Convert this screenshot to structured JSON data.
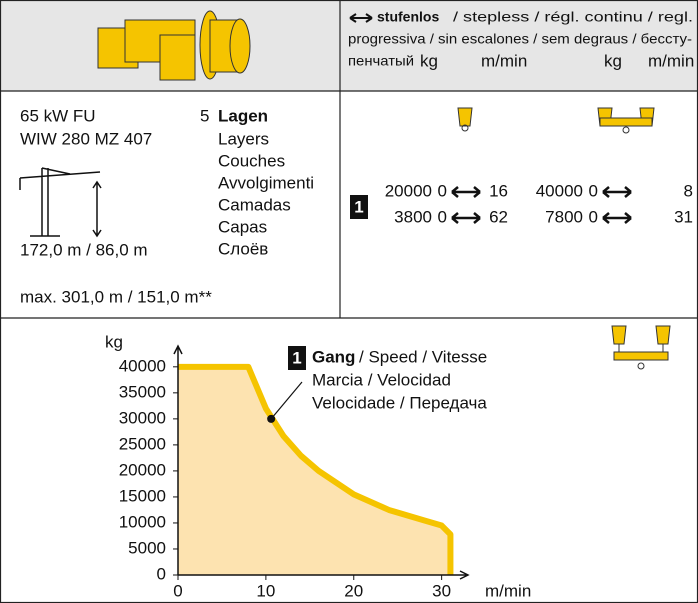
{
  "header": {
    "title": "stufenlos",
    "lines": [
      "/ stepless / régl. continu / regl.",
      "progressiva / sin escalones / sem degraus / бессту-",
      "пенчатый"
    ],
    "columns": [
      "kg",
      "m/min",
      "kg",
      "m/min"
    ]
  },
  "motor": {
    "power": "65 kW FU",
    "model": "WIW 280 MZ 407",
    "layers_count": "5",
    "layers": [
      "Lagen",
      "Layers",
      "Couches",
      "Avvolgimenti",
      "Camadas",
      "Capas",
      "Слоёв"
    ],
    "height": "172,0 m / 86,0 m",
    "max": "max. 301,0 m / 151,0 m**"
  },
  "speeds": {
    "gear": "1",
    "rows": [
      [
        "20000",
        "0",
        "16",
        "40000",
        "0",
        "8"
      ],
      [
        "3800",
        "0",
        "62",
        "7800",
        "0",
        "31"
      ]
    ]
  },
  "chart_data": {
    "type": "area",
    "color": "#f5c400",
    "fill": "#fde3b0",
    "y_label": "kg",
    "x_label": "m/min",
    "x": [
      0,
      8,
      10,
      12,
      14,
      16,
      20,
      24,
      28,
      30,
      31,
      31
    ],
    "values": [
      40000,
      40000,
      32000,
      26700,
      22900,
      20000,
      15500,
      12500,
      10500,
      9500,
      7800,
      0
    ],
    "xlim": [
      0,
      33
    ],
    "ylim": [
      0,
      44000
    ],
    "xticks": [
      0,
      10,
      20,
      30
    ],
    "yticks": [
      0,
      5000,
      10000,
      15000,
      20000,
      25000,
      30000,
      35000,
      40000
    ],
    "marker": {
      "x": 10.6,
      "y": 30000
    },
    "annotation": {
      "gear": "1",
      "bold": "Gang",
      "lines": [
        "/ Speed / Vitesse",
        "Marcia / Velocidad",
        "Velocidade / Передача"
      ]
    }
  }
}
